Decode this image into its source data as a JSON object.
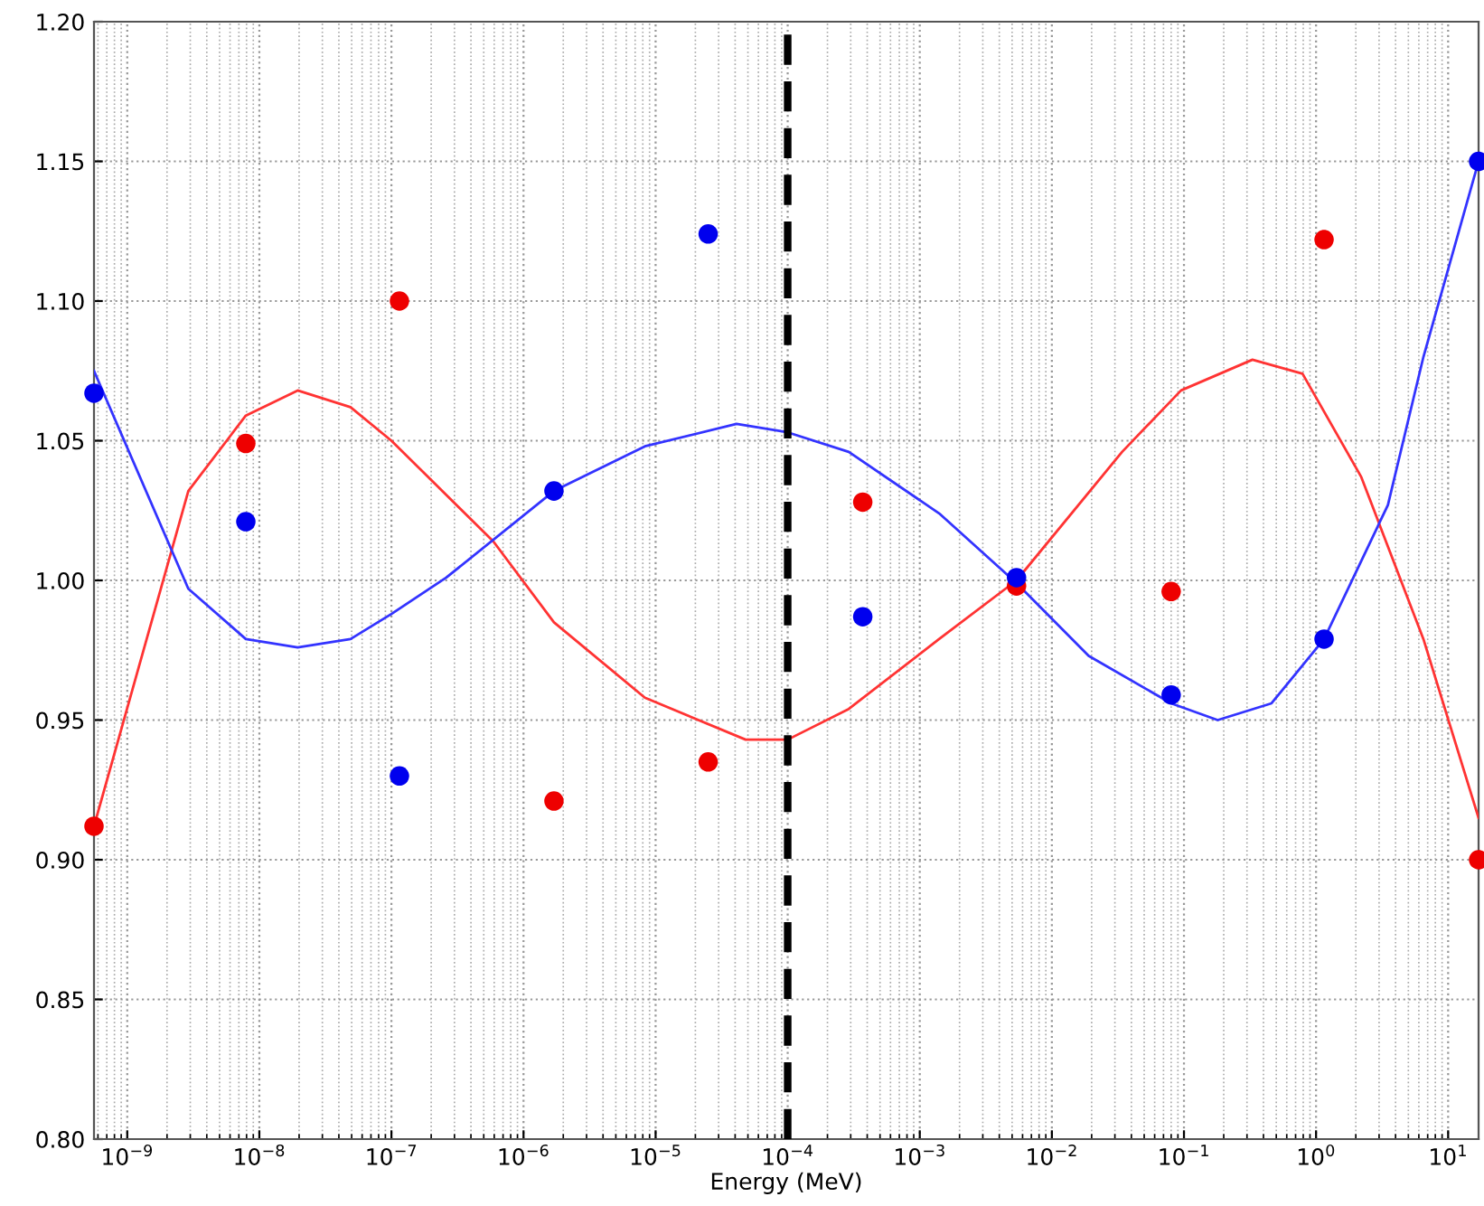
{
  "chart_data": {
    "type": "scatter",
    "xlabel": "Energy (MeV)",
    "log": "x",
    "grid": true,
    "legend": false,
    "xlim": [
      5.6e-10,
      17
    ],
    "ylim": [
      0.8,
      1.2
    ],
    "xticks": [
      {
        "value": 1e-09,
        "label": "10$^{−9}$"
      },
      {
        "value": 1e-08,
        "label": "10$^{−8}$"
      },
      {
        "value": 1e-07,
        "label": "10$^{−7}$"
      },
      {
        "value": 1e-06,
        "label": "10$^{−6}$"
      },
      {
        "value": 1e-05,
        "label": "10$^{−5}$"
      },
      {
        "value": 0.0001,
        "label": "10$^{−4}$"
      },
      {
        "value": 0.001,
        "label": "10$^{−3}$"
      },
      {
        "value": 0.01,
        "label": "10$^{−2}$"
      },
      {
        "value": 0.1,
        "label": "10$^{−1}$"
      },
      {
        "value": 1,
        "label": "10$^{0}$"
      },
      {
        "value": 10,
        "label": "10$^{1}$"
      }
    ],
    "yticks": [
      {
        "value": 0.8,
        "label": "0.80"
      },
      {
        "value": 0.85,
        "label": "0.85"
      },
      {
        "value": 0.9,
        "label": "0.90"
      },
      {
        "value": 0.95,
        "label": "0.95"
      },
      {
        "value": 1.0,
        "label": "1.00"
      },
      {
        "value": 1.05,
        "label": "1.05"
      },
      {
        "value": 1.1,
        "label": "1.10"
      },
      {
        "value": 1.15,
        "label": "1.15"
      },
      {
        "value": 1.2,
        "label": "1.20"
      }
    ],
    "ref_lines": [
      {
        "axis": "x",
        "value": 0.0001,
        "color": "#000000",
        "line_style": "dashed"
      }
    ],
    "series": [
      {
        "type": "line",
        "color": "#ff3333",
        "x": [
          5.6e-10,
          2.9e-09,
          7.9e-09,
          1.95e-08,
          4.9e-08,
          1e-07,
          5.9e-07,
          1.7e-06,
          8.3e-06,
          4.8e-05,
          0.0001,
          0.00029,
          0.0014,
          0.0054,
          0.034,
          0.095,
          0.33,
          0.79,
          2.2,
          6.5,
          17
        ],
        "values": [
          0.912,
          1.032,
          1.059,
          1.068,
          1.062,
          1.05,
          1.014,
          0.985,
          0.958,
          0.943,
          0.943,
          0.954,
          0.979,
          1.0,
          1.046,
          1.068,
          1.079,
          1.074,
          1.037,
          0.979,
          0.915
        ]
      },
      {
        "type": "line",
        "color": "#3333ff",
        "x": [
          5.6e-10,
          2.9e-09,
          7.9e-09,
          1.95e-08,
          4.9e-08,
          1e-07,
          2.6e-07,
          1.7e-06,
          8.3e-06,
          4.1e-05,
          0.0001,
          0.00029,
          0.0014,
          0.0054,
          0.019,
          0.08,
          0.18,
          0.46,
          1.15,
          3.5,
          6.5,
          17
        ],
        "values": [
          1.075,
          0.997,
          0.979,
          0.976,
          0.979,
          0.988,
          1.001,
          1.032,
          1.048,
          1.056,
          1.053,
          1.046,
          1.024,
          0.999,
          0.973,
          0.956,
          0.95,
          0.956,
          0.979,
          1.027,
          1.08,
          1.15
        ]
      },
      {
        "marker": "circle",
        "color": "#ee0000",
        "x": [
          5.6e-10,
          7.9e-09,
          1.15e-07,
          1.7e-06,
          2.5e-05,
          0.00037,
          0.0054,
          0.08,
          1.15,
          17
        ],
        "values": [
          0.912,
          1.049,
          1.1,
          0.921,
          0.935,
          1.028,
          0.998,
          0.996,
          1.122,
          0.9
        ]
      },
      {
        "marker": "circle",
        "color": "#0000ee",
        "x": [
          5.6e-10,
          7.9e-09,
          1.15e-07,
          1.7e-06,
          2.5e-05,
          0.00037,
          0.0054,
          0.08,
          1.15,
          17
        ],
        "values": [
          1.067,
          1.021,
          0.93,
          1.032,
          1.124,
          0.987,
          1.001,
          0.959,
          0.979,
          1.15
        ]
      }
    ]
  }
}
